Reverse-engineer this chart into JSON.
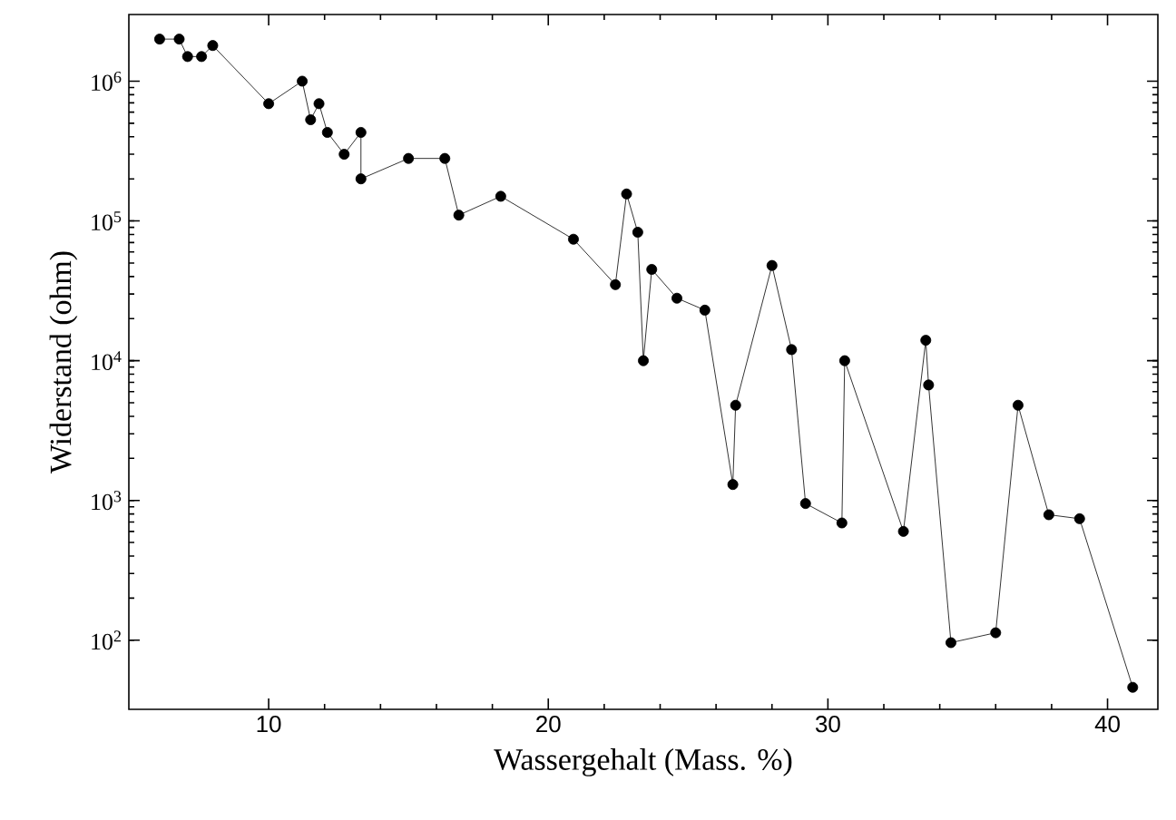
{
  "chart_data": {
    "type": "line",
    "xlabel": "Wassergehalt (Mass. %)",
    "ylabel": "Widerstand (ohm)",
    "x": [
      6.1,
      6.8,
      7.1,
      7.6,
      8.0,
      10.0,
      11.2,
      11.5,
      11.8,
      12.1,
      12.7,
      13.3,
      13.3,
      15.0,
      16.3,
      16.8,
      18.3,
      20.9,
      22.4,
      22.8,
      23.2,
      23.4,
      23.7,
      24.6,
      25.6,
      26.6,
      26.7,
      28.0,
      28.7,
      29.2,
      30.5,
      30.6,
      32.7,
      33.5,
      33.6,
      34.4,
      36.0,
      36.8,
      37.9,
      39.0,
      40.9
    ],
    "values": [
      2000000,
      2000000,
      1500000,
      1500000,
      1800000,
      690000,
      1000000,
      530000,
      690000,
      430000,
      300000,
      430000,
      200000,
      280000,
      280000,
      110000,
      150000,
      74000,
      35000,
      156000,
      83000,
      10000,
      45000,
      28000,
      23000,
      1300,
      4800,
      48000,
      12000,
      950,
      690,
      10000,
      600,
      14000,
      6700,
      96,
      113,
      4800,
      790,
      740,
      46
    ],
    "color": "#000000",
    "marker": "circle",
    "line_style": "solid",
    "log": "y",
    "grid": false,
    "xlim": [
      5,
      41.8
    ],
    "ylim": [
      32,
      3000000
    ],
    "xticks": [
      10,
      20,
      30,
      40
    ],
    "yticks": [
      {
        "value": 100,
        "label": "10$^{2}$"
      },
      {
        "value": 1000,
        "label": "10$^{3}$"
      },
      {
        "value": 10000,
        "label": "10$^{4}$"
      },
      {
        "value": 100000,
        "label": "10$^{5}$"
      },
      {
        "value": 1000000,
        "label": "10$^{6}$"
      }
    ]
  }
}
